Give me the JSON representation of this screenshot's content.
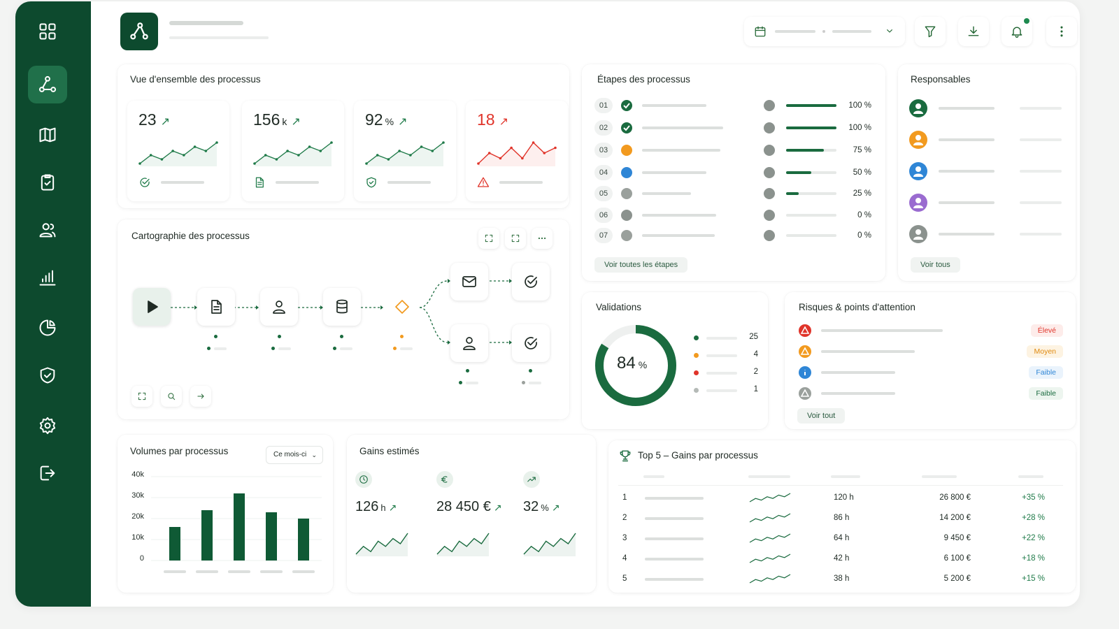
{
  "sidebar": {
    "items": [
      {
        "icon": "grid-icon",
        "active": false
      },
      {
        "icon": "process-flow-icon",
        "active": true
      },
      {
        "icon": "map-icon",
        "active": false
      },
      {
        "icon": "clipboard-check-icon",
        "active": false
      },
      {
        "icon": "users-icon",
        "active": false
      },
      {
        "icon": "bar-chart-icon",
        "active": false
      },
      {
        "icon": "pie-chart-icon",
        "active": false
      },
      {
        "icon": "shield-check-icon",
        "active": false
      },
      {
        "icon": "settings-icon",
        "active": false
      },
      {
        "icon": "logout-icon",
        "active": false
      }
    ]
  },
  "overview": {
    "title": "Vue d'ensemble des processus",
    "kpis": [
      {
        "value": "23",
        "unit": "",
        "arrow": "↗",
        "icon": "check-circle-icon",
        "trend": [
          4,
          6,
          5,
          7,
          6,
          8,
          7,
          9
        ]
      },
      {
        "value": "156",
        "unit": "k",
        "arrow": "↗",
        "icon": "document-icon",
        "trend": [
          4,
          6,
          5,
          7,
          6,
          8,
          7,
          9
        ]
      },
      {
        "value": "92",
        "unit": "%",
        "arrow": "↗",
        "icon": "shield-check-icon",
        "trend": [
          4,
          6,
          5,
          7,
          6,
          8,
          7,
          9
        ]
      },
      {
        "value": "18",
        "unit": "",
        "arrow": "↗",
        "icon": "warning-icon",
        "trend": [
          4,
          6,
          5,
          7,
          5,
          8,
          6,
          7
        ],
        "color": "#e0342a"
      }
    ]
  },
  "steps": {
    "title": "Étapes des processus",
    "rows": [
      {
        "num": "01",
        "status": "done",
        "progress": 100,
        "pct_label": "100 %"
      },
      {
        "num": "02",
        "status": "done",
        "progress": 100,
        "pct_label": "100 %"
      },
      {
        "num": "03",
        "status": "in-progress",
        "progress": 75,
        "pct_label": "75 %"
      },
      {
        "num": "04",
        "status": "assigned",
        "progress": 50,
        "pct_label": "50 %"
      },
      {
        "num": "05",
        "status": "pending",
        "progress": 25,
        "pct_label": "25 %"
      },
      {
        "num": "06",
        "status": "waiting",
        "progress": 0,
        "pct_label": "0 %"
      },
      {
        "num": "07",
        "status": "add",
        "progress": 0,
        "pct_label": "0 %"
      }
    ],
    "see_all": "Voir toutes les étapes"
  },
  "owners": {
    "title": "Responsables",
    "avatar_colors": [
      "#1a6b3f",
      "#f29a1f",
      "#2f86d6",
      "#9a6bd0",
      "#8b928e"
    ],
    "see_all": "Voir tous"
  },
  "map": {
    "title": "Cartographie des processus",
    "nodes": [
      "play-icon",
      "document-icon",
      "user-icon",
      "database-icon",
      "decision-icon",
      "mail-icon",
      "check-circle-icon",
      "user-icon",
      "check-circle-icon"
    ]
  },
  "validations": {
    "title": "Validations",
    "percent": 84,
    "percent_label": "84",
    "unit": "%",
    "legend": [
      {
        "color": "#1a6b3f",
        "value": "25"
      },
      {
        "color": "#f29a1f",
        "value": "4"
      },
      {
        "color": "#e0342a",
        "value": "2"
      },
      {
        "color": "#b5bab7",
        "value": "1"
      }
    ]
  },
  "risks": {
    "title": "Risques & points d'attention",
    "items": [
      {
        "icon": "warning-icon",
        "icon_color": "#e0342a",
        "badge": "Élevé",
        "badge_color": "#e0342a",
        "badge_bg": "#fdecea"
      },
      {
        "icon": "warning-icon",
        "icon_color": "#f29a1f",
        "badge": "Moyen",
        "badge_color": "#e08a10",
        "badge_bg": "#fdf3e2"
      },
      {
        "icon": "info-icon",
        "icon_color": "#2f86d6",
        "badge": "Faible",
        "badge_color": "#2f86d6",
        "badge_bg": "#eaf3fc"
      },
      {
        "icon": "shield-icon",
        "icon_color": "#9aa09c",
        "badge": "Faible",
        "badge_color": "#1a6b3f",
        "badge_bg": "#edf5ef"
      }
    ],
    "see_all": "Voir tout"
  },
  "volumes": {
    "title": "Volumes par processus",
    "period": "Ce mois-ci",
    "chart_data": {
      "type": "bar",
      "categories": [
        "",
        "",
        "",
        "",
        ""
      ],
      "values": [
        16,
        24,
        32,
        23,
        20
      ],
      "title": "Volumes par processus",
      "ylim": [
        0,
        40
      ],
      "yticks": [
        "40k",
        "30k",
        "20k",
        "10k",
        "0"
      ],
      "grid": true
    }
  },
  "gains": {
    "title": "Gains estimés",
    "items": [
      {
        "icon": "clock-icon",
        "value": "126",
        "unit": "h",
        "arrow": "↗"
      },
      {
        "icon": "euro-icon",
        "value": "28 450 €",
        "unit": "",
        "arrow": "↗"
      },
      {
        "icon": "trend-up-icon",
        "value": "32",
        "unit": "%",
        "arrow": "↗"
      }
    ]
  },
  "top5": {
    "title": "Top 5 – Gains par processus",
    "rows": [
      {
        "rank": "1",
        "hours": "120 h",
        "amount": "26 800 €",
        "growth": "+35 %"
      },
      {
        "rank": "2",
        "hours": "86 h",
        "amount": "14 200 €",
        "growth": "+28 %"
      },
      {
        "rank": "3",
        "hours": "64 h",
        "amount": "9 450 €",
        "growth": "+22 %"
      },
      {
        "rank": "4",
        "hours": "42 h",
        "amount": "6 100 €",
        "growth": "+18 %"
      },
      {
        "rank": "5",
        "hours": "38 h",
        "amount": "5 200 €",
        "growth": "+15 %"
      }
    ]
  },
  "colors": {
    "brand": "#0d4a2e",
    "accent": "#1a6b3f",
    "danger": "#e0342a",
    "warning": "#f29a1f",
    "info": "#2f86d6"
  }
}
